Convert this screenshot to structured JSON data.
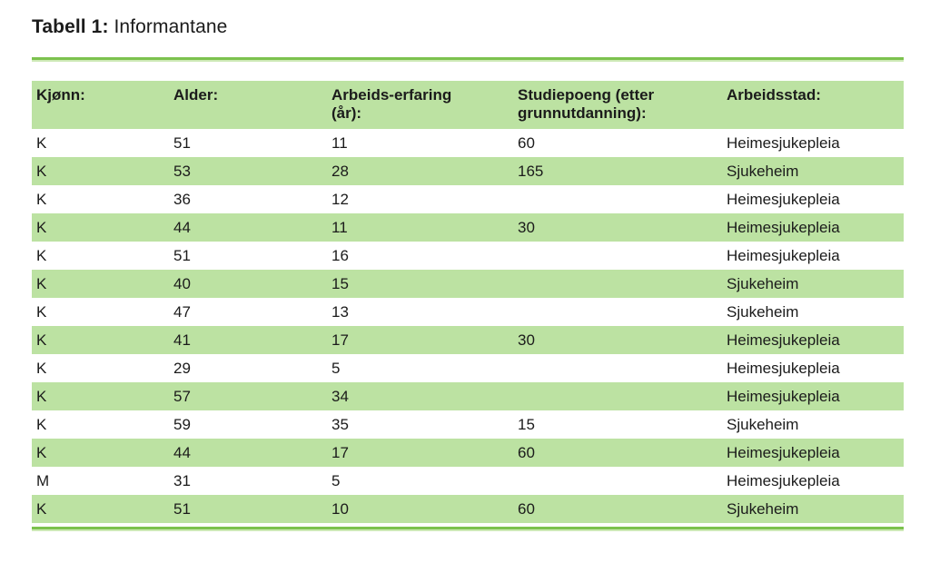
{
  "title": {
    "bold": "Tabell 1:",
    "regular": "Informantane"
  },
  "colors": {
    "band_green": "#bce2a2",
    "rule_green": "#7cc24e",
    "rule_light_green": "#cde9b6",
    "text": "#1b1b1b",
    "background": "#ffffff"
  },
  "table": {
    "headers": [
      "Kjønn:",
      "Alder:",
      "Arbeids-erfaring\n(år):",
      "Studiepoeng (etter\ngrunnutdanning):",
      "Arbeidsstad:"
    ],
    "rows": [
      [
        "K",
        "51",
        "11",
        "60",
        "Heimesjukepleia"
      ],
      [
        "K",
        "53",
        "28",
        "165",
        "Sjukeheim"
      ],
      [
        "K",
        "36",
        "12",
        "",
        "Heimesjukepleia"
      ],
      [
        "K",
        "44",
        "11",
        "30",
        "Heimesjukepleia"
      ],
      [
        "K",
        "51",
        "16",
        "",
        "Heimesjukepleia"
      ],
      [
        "K",
        "40",
        "15",
        "",
        "Sjukeheim"
      ],
      [
        "K",
        "47",
        "13",
        "",
        "Sjukeheim"
      ],
      [
        "K",
        "41",
        "17",
        "30",
        "Heimesjukepleia"
      ],
      [
        "K",
        "29",
        "5",
        "",
        "Heimesjukepleia"
      ],
      [
        "K",
        "57",
        "34",
        "",
        "Heimesjukepleia"
      ],
      [
        "K",
        "59",
        "35",
        "15",
        "Sjukeheim"
      ],
      [
        "K",
        "44",
        "17",
        "60",
        "Heimesjukepleia"
      ],
      [
        "M",
        "31",
        "5",
        "",
        "Heimesjukepleia"
      ],
      [
        "K",
        "51",
        "10",
        "60",
        "Sjukeheim"
      ]
    ]
  }
}
